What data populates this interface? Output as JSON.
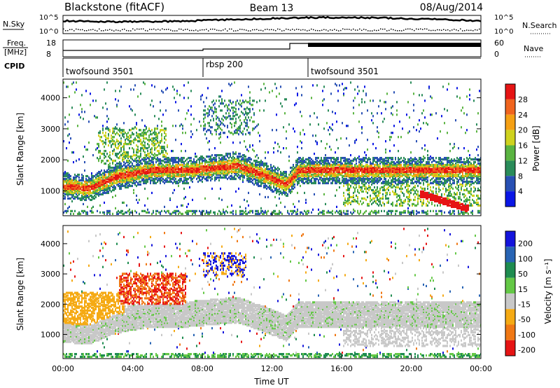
{
  "header": {
    "station": "Blackstone (fitACF)",
    "beam": "Beam 13",
    "date": "08/Aug/2014"
  },
  "strips": {
    "nsky_label": "N.Sky",
    "nsearch_label": "N.Search",
    "nsky_ticks": [
      "10^5",
      "10^0"
    ],
    "freq_label_line1": "Freq.",
    "freq_label_line2": "[MHz]",
    "freq_ticks": [
      "18",
      "8"
    ],
    "nave_label": "Nave",
    "nave_ticks": [
      "60",
      "0"
    ],
    "cpid_label": "CPID"
  },
  "cpid_segments": [
    {
      "name": "twofsound 3501",
      "start_hour": 0,
      "end_hour": 8
    },
    {
      "name": "rbsp 200",
      "start_hour": 8,
      "end_hour": 14
    },
    {
      "name": "twofsound 3501",
      "start_hour": 14,
      "end_hour": 24
    }
  ],
  "chart_data": [
    {
      "type": "heatmap",
      "name": "power",
      "ylabel": "Slant Range [km]",
      "xlabel": "Time UT",
      "y_ticks": [
        1000,
        2000,
        3000,
        4000
      ],
      "ylim": [
        200,
        4600
      ],
      "x_tick_labels": [
        "00:00",
        "04:00",
        "08:00",
        "12:00",
        "16:00",
        "20:00",
        "00:00"
      ],
      "xlim_hours": [
        0,
        24
      ],
      "colorbar_label": "Power [dB]",
      "colorbar_ticks": [
        "4",
        "8",
        "12",
        "16",
        "20",
        "24",
        "28"
      ],
      "colorbar_colors": [
        "#0a16e6",
        "#2850b4",
        "#2a8c5a",
        "#5ab441",
        "#cfd21e",
        "#f5a014",
        "#f0641e",
        "#e61414"
      ],
      "dominant_band_km": [
        [
          0,
          1150
        ],
        [
          1.5,
          1080
        ],
        [
          3,
          1450
        ],
        [
          5,
          1650
        ],
        [
          7,
          1650
        ],
        [
          9,
          1750
        ],
        [
          10,
          1800
        ],
        [
          11.5,
          1500
        ],
        [
          12.8,
          1200
        ],
        [
          13.5,
          1650
        ],
        [
          16,
          1650
        ],
        [
          20,
          1650
        ],
        [
          24,
          1650
        ]
      ]
    },
    {
      "type": "heatmap",
      "name": "velocity",
      "ylabel": "Slant Range [km]",
      "xlabel": "Time UT",
      "y_ticks": [
        1000,
        2000,
        3000,
        4000
      ],
      "ylim": [
        200,
        4600
      ],
      "x_tick_labels": [
        "00:00",
        "04:00",
        "08:00",
        "12:00",
        "16:00",
        "20:00",
        "00:00"
      ],
      "xlim_hours": [
        0,
        24
      ],
      "colorbar_label": "Velocity [m s⁻¹]",
      "colorbar_ticks": [
        "200",
        "100",
        "50",
        "15",
        "-15",
        "-50",
        "-100",
        "-200"
      ],
      "colorbar_colors": [
        "#1414dc",
        "#2864b4",
        "#1e8c50",
        "#64c846",
        "#c8c8c8",
        "#f5aa14",
        "#f07814",
        "#e61414"
      ]
    }
  ]
}
